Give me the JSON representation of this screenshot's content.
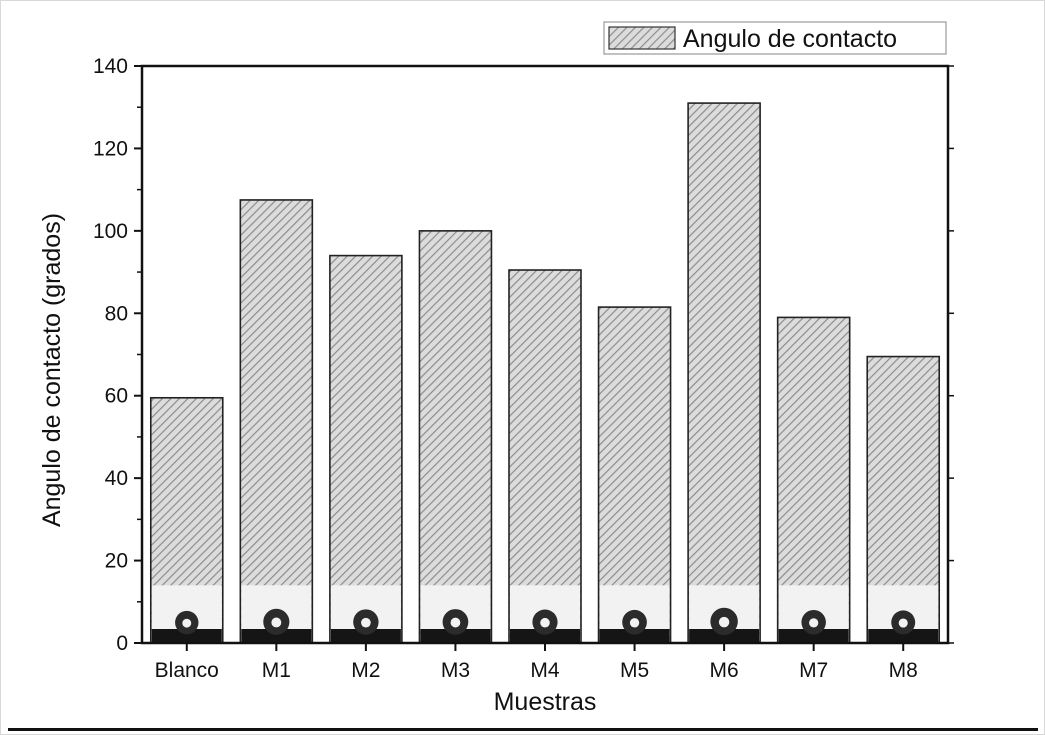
{
  "chart_data": {
    "type": "bar",
    "categories": [
      "Blanco",
      "M1",
      "M2",
      "M3",
      "M4",
      "M5",
      "M6",
      "M7",
      "M8"
    ],
    "series": [
      {
        "name": "Angulo de contacto",
        "values": [
          59.5,
          107.5,
          94,
          100,
          90.5,
          81.5,
          131,
          79,
          69.5
        ]
      }
    ],
    "xlabel": "Muestras",
    "ylabel": "Angulo de contacto (grados)",
    "ylim": [
      0,
      140
    ],
    "yticks": [
      0,
      20,
      40,
      60,
      80,
      100,
      120,
      140
    ],
    "ytick_labels": [
      "0",
      "20",
      "40",
      "60",
      "80",
      "100",
      "120",
      "140"
    ],
    "legend_position": "top-right",
    "grid": false,
    "bar_fill": "diagonal hatch",
    "bar_colors": {
      "hatch": "#8c8c8c",
      "background": "#dcdcdc",
      "edge": "#222222"
    },
    "inset": "water droplet photo at the base of each bar"
  }
}
